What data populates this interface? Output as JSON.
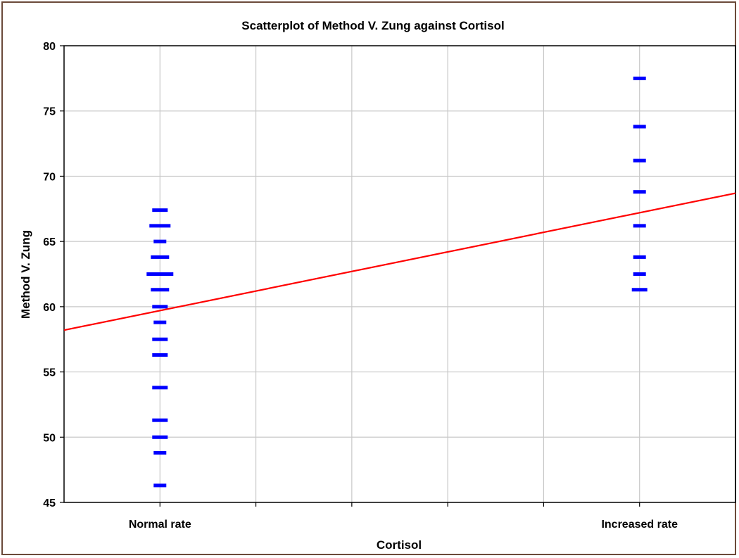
{
  "chart_data": {
    "type": "scatter",
    "title": "Scatterplot of Method V. Zung against Cortisol",
    "xlabel": "Cortisol",
    "ylabel": "Method V. Zung",
    "categories": [
      "Normal rate",
      "Increased rate"
    ],
    "ylim": [
      45,
      80
    ],
    "yticks": [
      45,
      50,
      55,
      60,
      65,
      70,
      75,
      80
    ],
    "grid": true,
    "point_color": "#0000ff",
    "fit_line_color": "#ff0000",
    "series": [
      {
        "points": [
          {
            "category": "Normal rate",
            "y": 67.4,
            "count": 3
          },
          {
            "category": "Normal rate",
            "y": 66.2,
            "count": 5
          },
          {
            "category": "Normal rate",
            "y": 65.0,
            "count": 2
          },
          {
            "category": "Normal rate",
            "y": 63.8,
            "count": 4
          },
          {
            "category": "Normal rate",
            "y": 62.5,
            "count": 7
          },
          {
            "category": "Normal rate",
            "y": 61.3,
            "count": 4
          },
          {
            "category": "Normal rate",
            "y": 60.0,
            "count": 3
          },
          {
            "category": "Normal rate",
            "y": 58.8,
            "count": 2
          },
          {
            "category": "Normal rate",
            "y": 57.5,
            "count": 3
          },
          {
            "category": "Normal rate",
            "y": 56.3,
            "count": 3
          },
          {
            "category": "Normal rate",
            "y": 53.8,
            "count": 3
          },
          {
            "category": "Normal rate",
            "y": 51.3,
            "count": 3
          },
          {
            "category": "Normal rate",
            "y": 50.0,
            "count": 3
          },
          {
            "category": "Normal rate",
            "y": 48.8,
            "count": 2
          },
          {
            "category": "Normal rate",
            "y": 46.3,
            "count": 2
          },
          {
            "category": "Increased rate",
            "y": 77.5,
            "count": 2
          },
          {
            "category": "Increased rate",
            "y": 73.8,
            "count": 2
          },
          {
            "category": "Increased rate",
            "y": 71.2,
            "count": 2
          },
          {
            "category": "Increased rate",
            "y": 68.8,
            "count": 2
          },
          {
            "category": "Increased rate",
            "y": 66.2,
            "count": 2
          },
          {
            "category": "Increased rate",
            "y": 63.8,
            "count": 2
          },
          {
            "category": "Increased rate",
            "y": 62.5,
            "count": 2
          },
          {
            "category": "Increased rate",
            "y": 61.3,
            "count": 3
          }
        ]
      }
    ],
    "fit_line": {
      "Normal rate": 59.7,
      "Increased rate": 67.2
    }
  }
}
